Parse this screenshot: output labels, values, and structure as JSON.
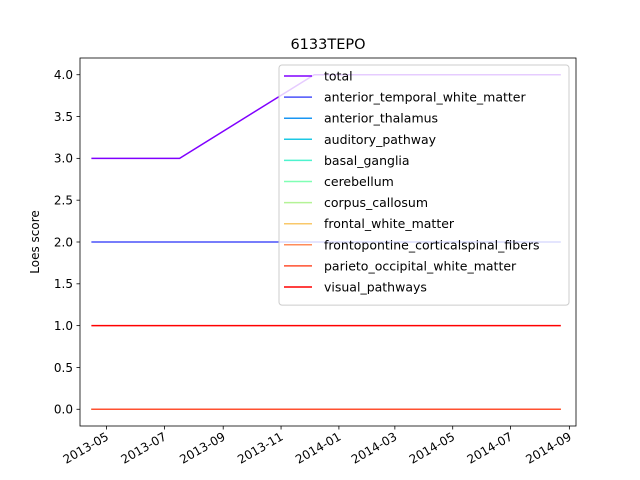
{
  "chart_data": {
    "type": "line",
    "title": "6133TEPO",
    "xlabel": "",
    "ylabel": "Loes score",
    "x_ticks": [
      "2013-05",
      "2013-07",
      "2013-09",
      "2013-11",
      "2014-01",
      "2014-03",
      "2014-05",
      "2014-07",
      "2014-09"
    ],
    "y_ticks": [
      "0.0",
      "0.5",
      "1.0",
      "1.5",
      "2.0",
      "2.5",
      "3.0",
      "3.5",
      "4.0"
    ],
    "ylim": [
      -0.2,
      4.2
    ],
    "xlim": [
      "2013-04-03",
      "2014-09-08"
    ],
    "grid": false,
    "legend_position": "top-right",
    "x": [
      "2013-04-15",
      "2013-07-17",
      "2013-12-06",
      "2014-08-23"
    ],
    "series": [
      {
        "name": "total",
        "color": "#8000ff",
        "values": [
          3,
          3,
          4,
          4
        ]
      },
      {
        "name": "anterior_temporal_white_matter",
        "color": "#4a52fa",
        "values": [
          2,
          2,
          2,
          2
        ]
      },
      {
        "name": "anterior_thalamus",
        "color": "#1996f3",
        "values": [
          0,
          0,
          0,
          0
        ]
      },
      {
        "name": "auditory_pathway",
        "color": "#1cc8e4",
        "values": [
          0,
          0,
          0,
          0
        ]
      },
      {
        "name": "basal_ganglia",
        "color": "#4df3ce",
        "values": [
          0,
          0,
          0,
          0
        ]
      },
      {
        "name": "cerebellum",
        "color": "#80ffb4",
        "values": [
          0,
          0,
          0,
          0
        ]
      },
      {
        "name": "corpus_callosum",
        "color": "#b4f396",
        "values": [
          0,
          0,
          0,
          0
        ]
      },
      {
        "name": "frontal_white_matter",
        "color": "#f9c86a",
        "values": [
          0,
          0,
          0,
          0
        ]
      },
      {
        "name": "frontopontine_corticalspinal_fibers",
        "color": "#ff8c5a",
        "values": [
          0,
          0,
          0,
          0
        ]
      },
      {
        "name": "parieto_occipital_white_matter",
        "color": "#ff5030",
        "values": [
          0,
          0,
          0,
          0
        ]
      },
      {
        "name": "visual_pathways",
        "color": "#ff0000",
        "values": [
          1,
          1,
          1,
          1
        ]
      }
    ]
  }
}
